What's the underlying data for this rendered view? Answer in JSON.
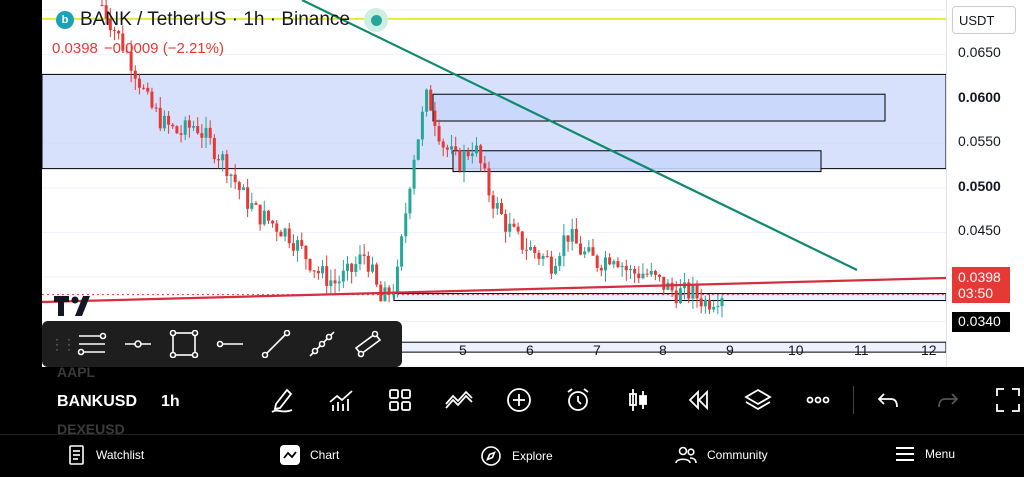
{
  "header": {
    "symbol_title": "BANK / TetherUS · 1h · Binance",
    "logo_letter": "b",
    "last_price": "0.0398",
    "change": "−0.0009 (−2.21%)"
  },
  "price_axis": {
    "currency": "USDT",
    "labels": [
      "0.0650",
      "0.0600",
      "0.0550",
      "0.0500",
      "0.0450"
    ],
    "current_price_tag": "0.0398",
    "countdown": "03:50",
    "level_tag": "0.0340"
  },
  "time_axis": {
    "labels": [
      "5",
      "6",
      "7",
      "8",
      "9",
      "10",
      "11",
      "12"
    ]
  },
  "drawing_toolbar": {
    "tools": [
      "trend-lines-tool",
      "horizontal-ray-tool",
      "rectangle-tool",
      "horizontal-line-tool",
      "trend-line-tool",
      "info-line-tool",
      "parallel-channel-tool"
    ]
  },
  "symbol_strip": {
    "prev_symbol": "AAPL",
    "current_symbol": "BANKUSD",
    "next_symbol": "DEXEUSD",
    "interval": "1h"
  },
  "bottom_nav": {
    "items": [
      "Watchlist",
      "Chart",
      "Explore",
      "Community",
      "Menu"
    ]
  },
  "colors": {
    "up": "#26a69a",
    "down": "#e53935",
    "zone_fill": "#c9d7fb",
    "trendline": "#0f8a6c",
    "support_line": "#d32f3f",
    "alert_line": "#e8e83a"
  },
  "chart_data": {
    "type": "candlestick",
    "trend": [
      0.069,
      0.066,
      0.063,
      0.059,
      0.057,
      0.056,
      0.057,
      0.055,
      0.053,
      0.05,
      0.048,
      0.047,
      0.046,
      0.044,
      0.042,
      0.041,
      0.042,
      0.044,
      0.039,
      0.041,
      0.053,
      0.06,
      0.055,
      0.053,
      0.055,
      0.05,
      0.047,
      0.045,
      0.044,
      0.043,
      0.046,
      0.044,
      0.043,
      0.044,
      0.042,
      0.042,
      0.041,
      0.04,
      0.04,
      0.039,
      0.04
    ],
    "zones": [
      {
        "from": 0.0525,
        "to": 0.062
      },
      {
        "from": 0.0573,
        "to": 0.06
      },
      {
        "from": 0.0522,
        "to": 0.0543
      },
      {
        "from": 0.0392,
        "to": 0.0399
      },
      {
        "from": 0.034,
        "to": 0.035
      }
    ],
    "alert_level": 0.0676,
    "ylim": [
      0.0325,
      0.0695
    ]
  }
}
